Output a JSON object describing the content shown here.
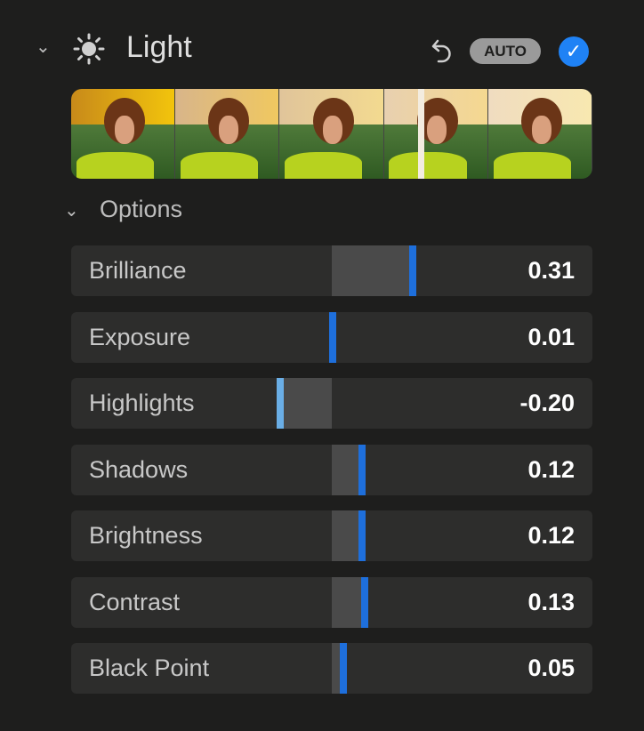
{
  "section": {
    "title": "Light",
    "icon": "sun-icon",
    "auto_label": "AUTO",
    "enabled": true
  },
  "options": {
    "label": "Options"
  },
  "colors": {
    "accent": "#1f82f5",
    "slider_handle": "#1e6fdc"
  },
  "sliders": [
    {
      "label": "Brilliance",
      "value": 0.31,
      "display": "0.31"
    },
    {
      "label": "Exposure",
      "value": 0.01,
      "display": "0.01"
    },
    {
      "label": "Highlights",
      "value": -0.2,
      "display": "-0.20"
    },
    {
      "label": "Shadows",
      "value": 0.12,
      "display": "0.12"
    },
    {
      "label": "Brightness",
      "value": 0.12,
      "display": "0.12"
    },
    {
      "label": "Contrast",
      "value": 0.13,
      "display": "0.13"
    },
    {
      "label": "Black Point",
      "value": 0.05,
      "display": "0.05"
    }
  ]
}
